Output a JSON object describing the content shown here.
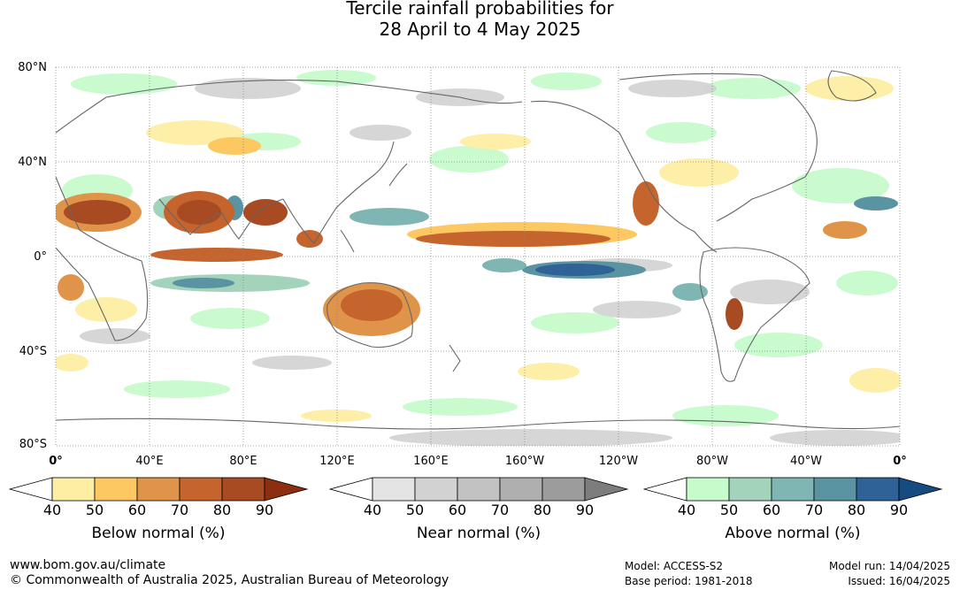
{
  "title_line1": "Tercile rainfall probabilities for",
  "title_line2": "28 April to 4 May 2025",
  "map": {
    "lat_labels": [
      "80°N",
      "40°N",
      "0°",
      "40°S",
      "80°S"
    ],
    "lon_labels": [
      "0°",
      "40°E",
      "80°E",
      "120°E",
      "160°E",
      "160°W",
      "120°W",
      "80°W",
      "40°W",
      "0°"
    ],
    "ocean_color": "#ffffff",
    "gridline_color": "#888888"
  },
  "legends": [
    {
      "title": "Below normal (%)",
      "ticks": [
        "40",
        "50",
        "60",
        "70",
        "80",
        "90"
      ],
      "colors": [
        "#ffffff",
        "#fdeea3",
        "#fdc862",
        "#e0944a",
        "#c6642e",
        "#a84a22",
        "#8c2e10"
      ]
    },
    {
      "title": "Near normal (%)",
      "ticks": [
        "40",
        "50",
        "60",
        "70",
        "80",
        "90"
      ],
      "colors": [
        "#ffffff",
        "#e4e4e4",
        "#d2d2d2",
        "#c2c2c2",
        "#afafaf",
        "#9c9c9c",
        "#7d7d7d"
      ]
    },
    {
      "title": "Above normal (%)",
      "ticks": [
        "40",
        "50",
        "60",
        "70",
        "80",
        "90"
      ],
      "colors": [
        "#ffffff",
        "#c6fbcb",
        "#a3d4bb",
        "#7fb6b4",
        "#5a93a1",
        "#2f6296",
        "#154b80"
      ]
    }
  ],
  "footer": {
    "site": "www.bom.gov.au/climate",
    "copyright": "© Commonwealth of Australia 2025, Australian Bureau of Meteorology",
    "model": "Model: ACCESS-S2",
    "base_period": "Base period: 1981-2018",
    "model_run": "Model run: 14/04/2025",
    "issued": "Issued: 16/04/2025"
  }
}
